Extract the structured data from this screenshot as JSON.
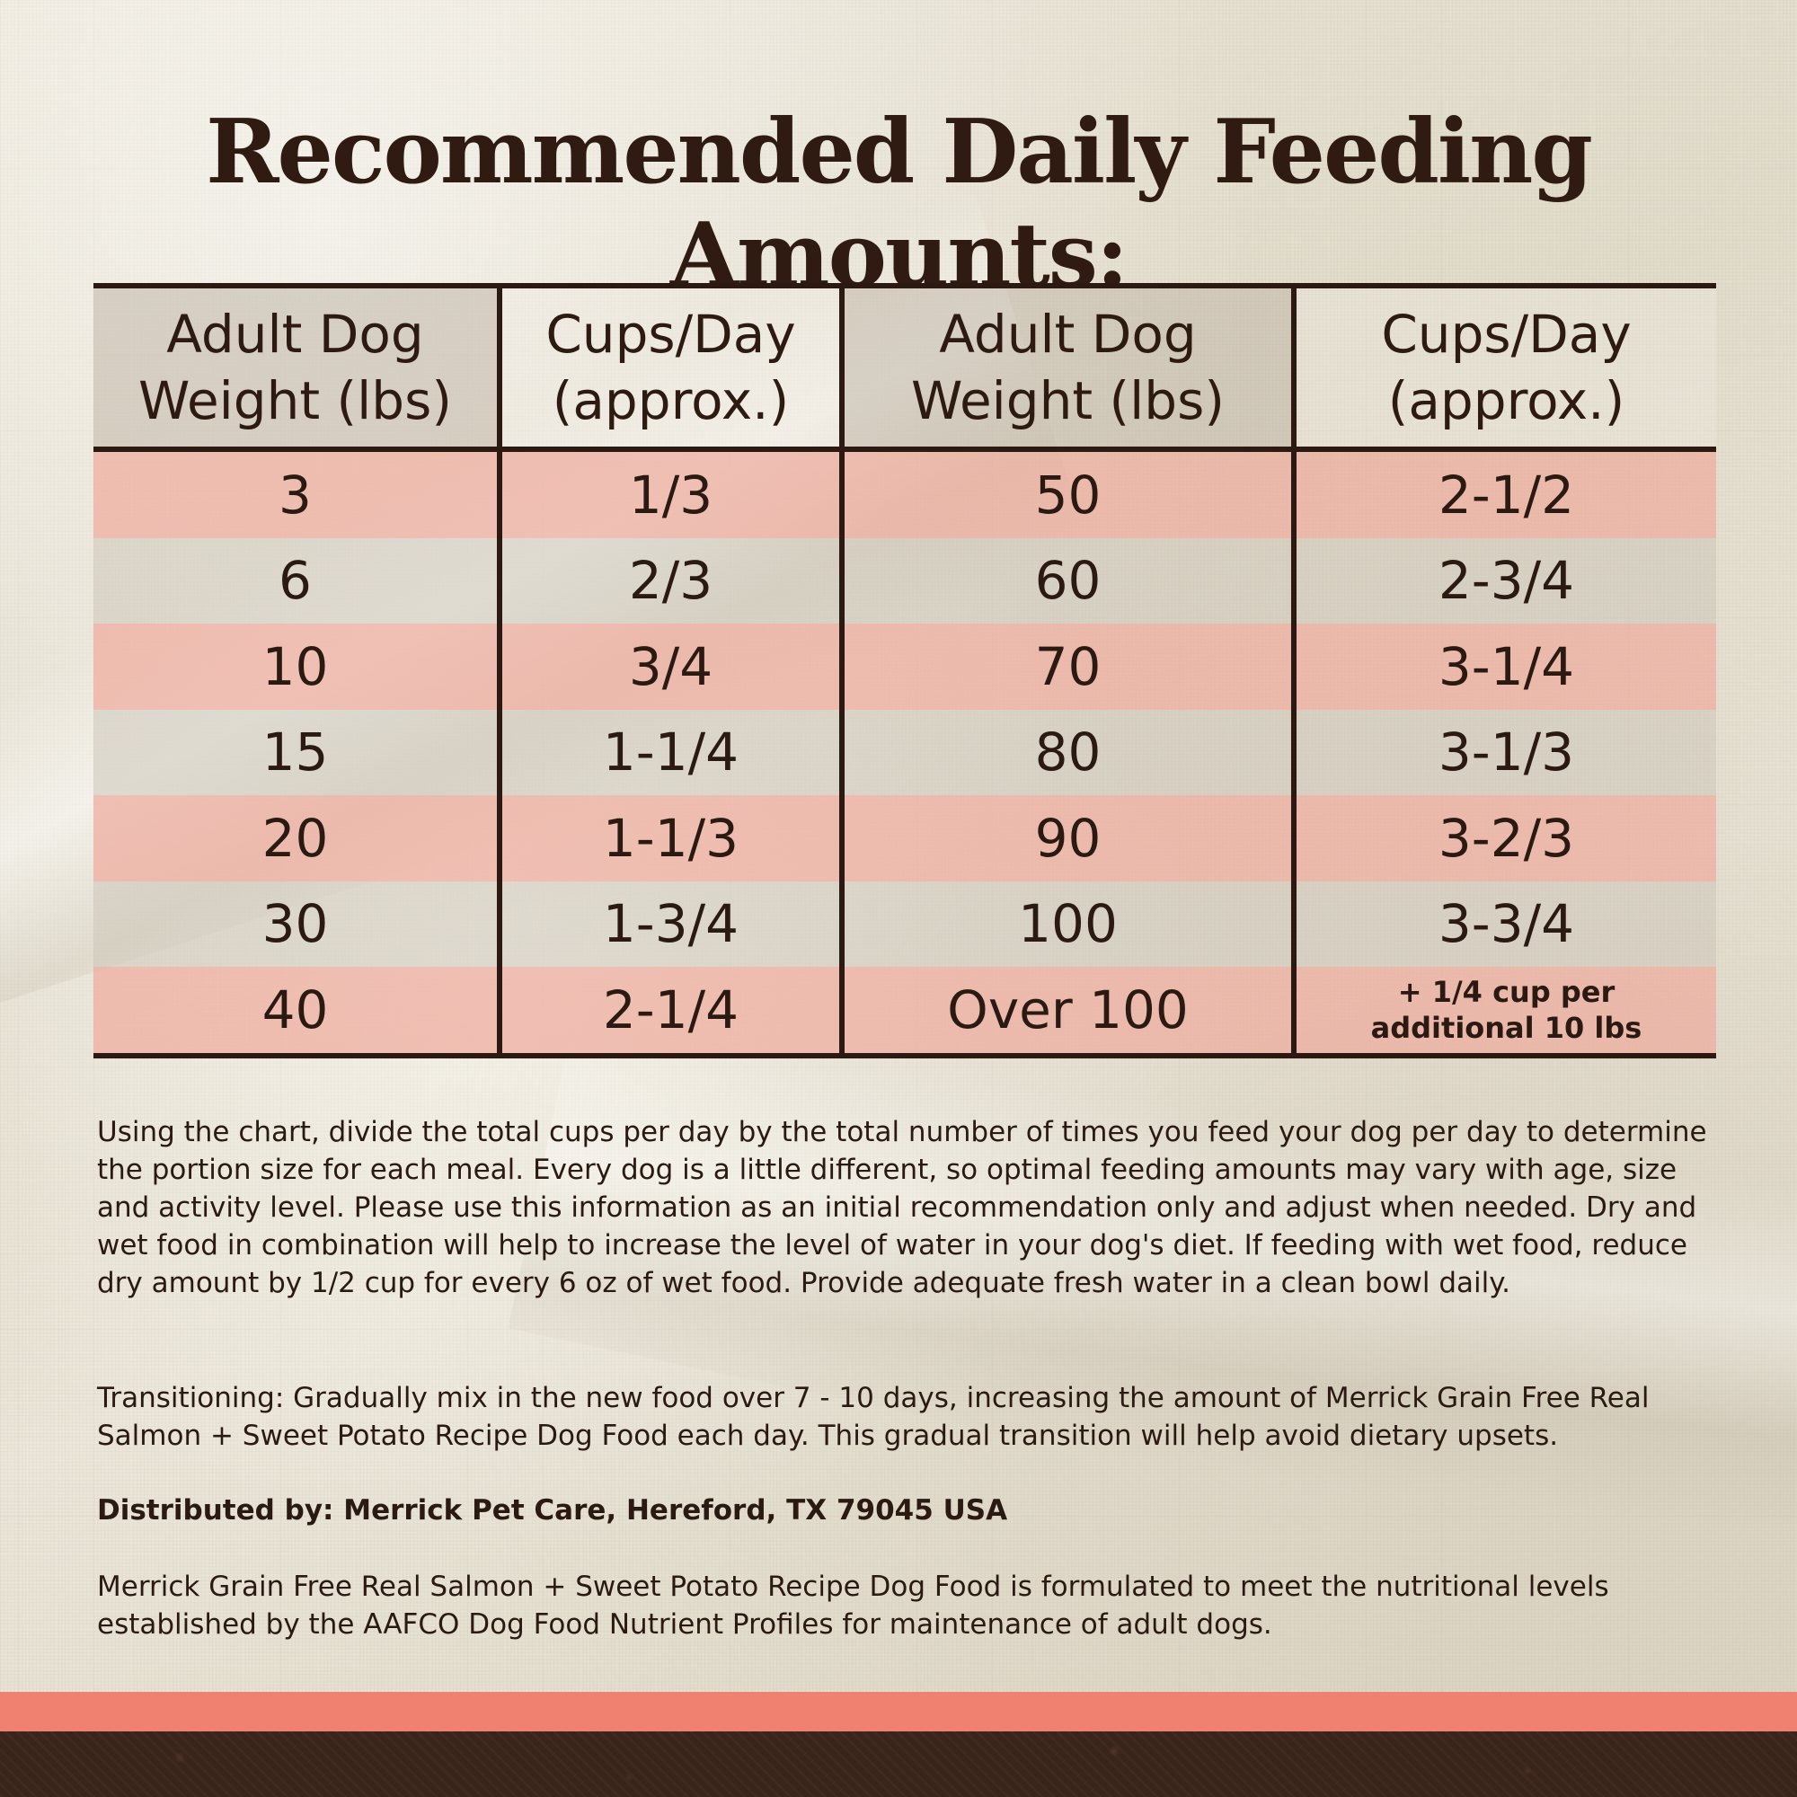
{
  "title": "Recommended Daily Feeding Amounts:",
  "table": {
    "headers": [
      {
        "line1": "Adult Dog",
        "line2": "Weight (lbs)"
      },
      {
        "line1": "Cups/Day",
        "line2": "(approx.)"
      },
      {
        "line1": "Adult Dog",
        "line2": "Weight (lbs)"
      },
      {
        "line1": "Cups/Day",
        "line2": "(approx.)"
      }
    ],
    "rows": [
      {
        "weight_a": "3",
        "cups_a": "1/3",
        "weight_b": "50",
        "cups_b": "2-1/2"
      },
      {
        "weight_a": "6",
        "cups_a": "2/3",
        "weight_b": "60",
        "cups_b": "2-3/4"
      },
      {
        "weight_a": "10",
        "cups_a": "3/4",
        "weight_b": "70",
        "cups_b": "3-1/4"
      },
      {
        "weight_a": "15",
        "cups_a": "1-1/4",
        "weight_b": "80",
        "cups_b": "3-1/3"
      },
      {
        "weight_a": "20",
        "cups_a": "1-1/3",
        "weight_b": "90",
        "cups_b": "3-2/3"
      },
      {
        "weight_a": "30",
        "cups_a": "1-3/4",
        "weight_b": "100",
        "cups_b": "3-3/4"
      },
      {
        "weight_a": "40",
        "cups_a": "2-1/4",
        "weight_b": "Over 100",
        "cups_b_line1": "+ 1/4 cup per",
        "cups_b_line2": "additional 10 lbs"
      }
    ]
  },
  "paragraphs": {
    "instructions": "Using the chart, divide the total cups per day by the total number of times you feed your dog per day to determine the portion size for each meal. Every dog is a little different, so optimal feeding amounts may vary with age, size and activity level. Please use this information as an initial recommendation only and adjust when needed. Dry and wet food in combination will help to increase the level of water in your dog's diet. If feeding with wet food, reduce dry amount by 1/2 cup for every 6 oz of wet food. Provide adequate fresh water in a clean bowl daily.",
    "transitioning": "Transitioning: Gradually mix in the new food over 7 - 10 days, increasing the amount of Merrick Grain Free Real Salmon + Sweet Potato Recipe Dog Food each day. This gradual transition will help avoid dietary upsets.",
    "distributor": "Distributed by: Merrick Pet Care, Hereford, TX 79045 USA",
    "aafco": "Merrick Grain Free Real Salmon + Sweet Potato Recipe Dog Food is formulated to meet the nutritional levels established by the AAFCO Dog Food Nutrient Profiles for maintenance of adult dogs."
  },
  "colors": {
    "text": "#2b1a12",
    "pink_row": "#eeac9e",
    "grey_row": "#cec6ba",
    "coral_band": "#f08070",
    "soil_band": "#3a251b"
  }
}
